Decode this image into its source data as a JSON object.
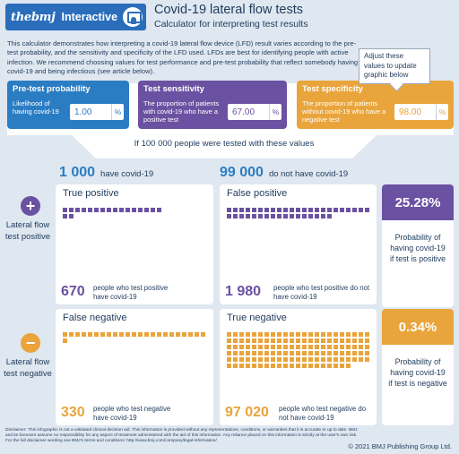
{
  "header": {
    "brand": "thebmj",
    "brand_sub": "Interactive",
    "title": "Covid-19 lateral flow tests",
    "subtitle": "Calculator for interpreting test results"
  },
  "intro": "This calculator demonstrates how interpreting a covid-19 lateral flow device (LFD) result varies according to the pre-test probability, and the sensitivity and specificity of the LFD used. LFDs are best for identifying people with active infection. We recommend choosing values for test performance and pre-test probability that reflect somebody having covid-19 and being infectious (see article below).",
  "callout": "Adjust these values to update graphic below",
  "params": [
    {
      "title": "Pre-test probability",
      "desc": "Likelihood of having covid-19",
      "value": "1.00",
      "unit": "%"
    },
    {
      "title": "Test sensitivity",
      "desc": "The proportion of patients with covid-19 who have a positive test",
      "value": "67.00",
      "unit": "%"
    },
    {
      "title": "Test specificity",
      "desc": "The proportion of patients without covid-19 who have a negative test",
      "value": "98.00",
      "unit": "%"
    }
  ],
  "tested_text": "If 100 000 people were tested with these values",
  "have": {
    "num": "1 000",
    "label": "have covid-19"
  },
  "not_have": {
    "num": "99 000",
    "label": "do not have covid-19"
  },
  "positive_side": "Lateral flow test positive",
  "negative_side": "Lateral flow test negative",
  "cards": {
    "tp": {
      "title": "True positive",
      "num": "670",
      "desc": "people who test positive have covid-19",
      "squares": 18
    },
    "fp": {
      "title": "False positive",
      "num": "1 980",
      "desc": "people who test positive do not have covid-19",
      "squares": 40
    },
    "fn": {
      "title": "False negative",
      "num": "330",
      "desc": "people who test negative have covid-19",
      "squares": 24
    },
    "tn": {
      "title": "True negative",
      "num": "97 020",
      "desc": "people who test negative do not have covid-19",
      "squares": 135
    }
  },
  "results": {
    "pos": {
      "value": "25.28%",
      "text": "Probability of having covid-19 if test is positive"
    },
    "neg": {
      "value": "0.34%",
      "text": "Probability of having covid-19 if test is negative"
    }
  },
  "disclaimer": "Disclaimer: This infographic is not a validated clinical decision aid. This information is provided without any representations, conditions, or warranties that it is accurate or up to date. BMJ and its licensors assume no responsibility for any aspect of treatment administered with the aid of this information. Any reliance placed on this information is strictly at the user's own risk. For the full disclaimer wording see BMJ's terms and conditions: http://www.bmj.com/company/legal-information/",
  "copyright": "© 2021 BMJ Publishing Group Ltd.",
  "colors": {
    "blue": "#2b7dc3",
    "purple": "#6b51a1",
    "orange": "#e9a43b",
    "bg": "#dfe7f0"
  }
}
